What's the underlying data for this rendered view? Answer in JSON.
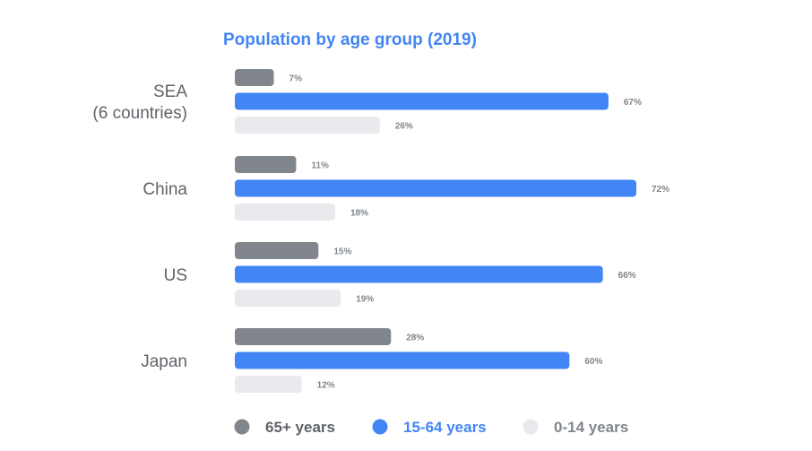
{
  "chart_data": {
    "type": "bar",
    "orientation": "horizontal",
    "title": "Population by age group (2019)",
    "categories": [
      [
        "SEA",
        "(6 countries)"
      ],
      [
        "China"
      ],
      [
        "US"
      ],
      [
        "Japan"
      ]
    ],
    "series": [
      {
        "name": "65+ years",
        "color": "#80868b",
        "values": [
          7,
          11,
          15,
          28
        ]
      },
      {
        "name": "15-64 years",
        "color": "#4285f4",
        "values": [
          67,
          72,
          66,
          60
        ]
      },
      {
        "name": "0-14 years",
        "color": "#e8eaed",
        "values": [
          26,
          18,
          19,
          12
        ]
      }
    ],
    "value_suffix": "%",
    "xlim": [
      0,
      72
    ],
    "grid": false,
    "legend": {
      "position": "bottom",
      "label_colors": [
        "#5f6368",
        "#4285f4",
        "#80868b"
      ]
    },
    "title_color": "#4285f4"
  }
}
